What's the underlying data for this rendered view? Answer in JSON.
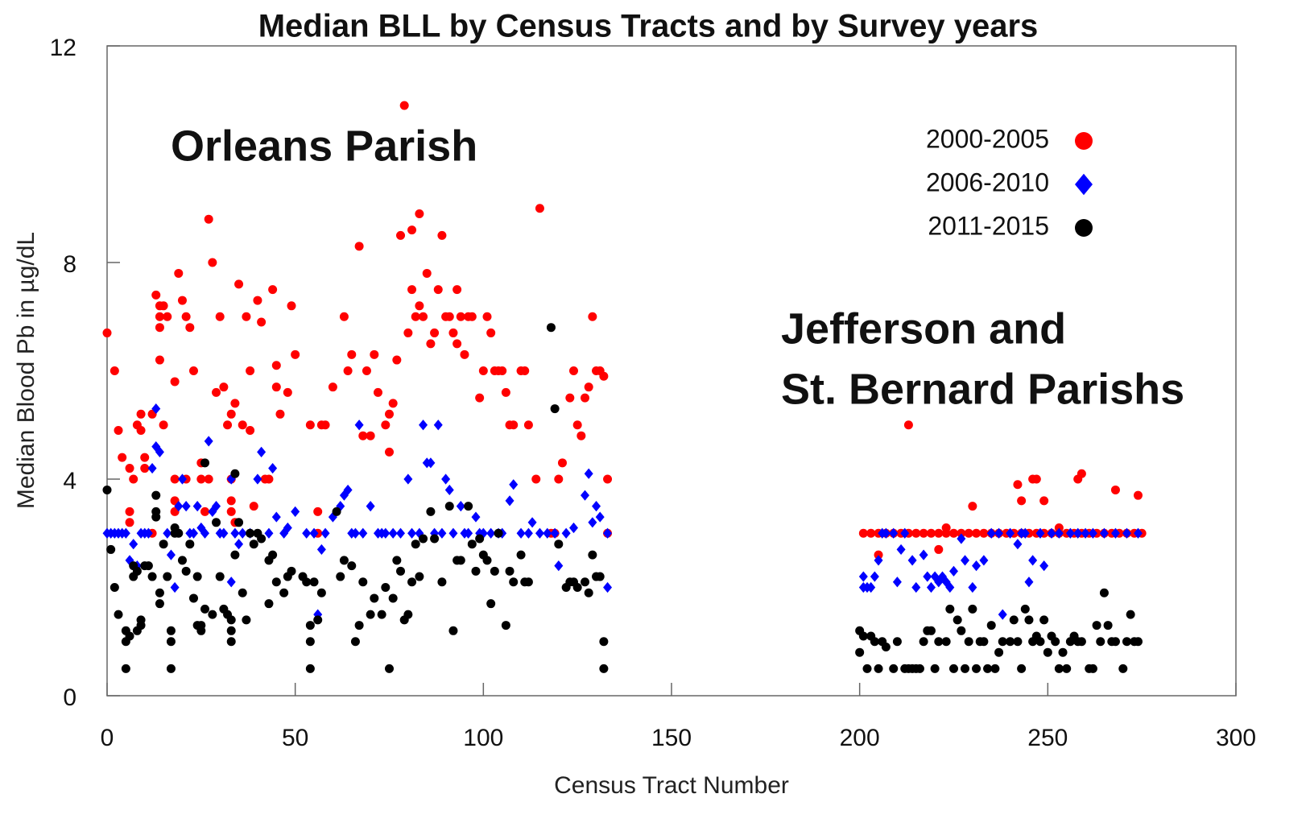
{
  "chart_data": {
    "type": "scatter",
    "title": "Median BLL by Census Tracts and by Survey years",
    "x_label": "Census Tract Number",
    "y_label": "Median Blood Pb in µg/dL",
    "annotations": [
      "Orleans Parish",
      "Jefferson and",
      "St. Bernard Parishs"
    ],
    "xlim": [
      0,
      300
    ],
    "xticks": [
      0,
      50,
      100,
      150,
      200,
      250,
      300
    ],
    "ylim": [
      0,
      12
    ],
    "yticks": [
      0,
      4,
      8,
      12
    ],
    "grid": false,
    "legend": "upper right",
    "series": [
      {
        "name": "2000-2005",
        "color": "#ff0000",
        "marker": "circle",
        "x": [
          0,
          2,
          3,
          4,
          6,
          6,
          6,
          7,
          8,
          9,
          9,
          10,
          10,
          12,
          12,
          13,
          14,
          14,
          14,
          14,
          15,
          15,
          16,
          18,
          18,
          18,
          18,
          19,
          20,
          21,
          21,
          22,
          23,
          25,
          25,
          26,
          27,
          27,
          28,
          29,
          30,
          31,
          32,
          33,
          33,
          33,
          33,
          34,
          34,
          35,
          36,
          37,
          38,
          38,
          39,
          40,
          41,
          42,
          43,
          44,
          45,
          45,
          46,
          48,
          49,
          50,
          54,
          56,
          56,
          57,
          58,
          60,
          63,
          64,
          65,
          67,
          68,
          69,
          70,
          71,
          72,
          74,
          75,
          75,
          76,
          77,
          78,
          79,
          80,
          81,
          81,
          82,
          83,
          83,
          84,
          85,
          86,
          87,
          88,
          89,
          90,
          91,
          92,
          93,
          93,
          94,
          95,
          96,
          97,
          99,
          100,
          101,
          102,
          103,
          104,
          105,
          106,
          107,
          108,
          110,
          111,
          112,
          114,
          115,
          118,
          119,
          120,
          121,
          123,
          124,
          125,
          126,
          127,
          128,
          129,
          130,
          131,
          132,
          133,
          133,
          213,
          205,
          221,
          223,
          230,
          242,
          243,
          246,
          247,
          249,
          253,
          258,
          259,
          268,
          274,
          201,
          203,
          205,
          207,
          209,
          211,
          213,
          215,
          217,
          219,
          221,
          223,
          225,
          227,
          229,
          231,
          233,
          235,
          237,
          239,
          241,
          243,
          245,
          247,
          249,
          251,
          253,
          255,
          257,
          259,
          261,
          263,
          265,
          267,
          269,
          271,
          273,
          275
        ],
        "values": [
          6.7,
          6,
          4.9,
          4.4,
          4.2,
          3.4,
          3.2,
          4,
          5,
          5.2,
          4.9,
          4.4,
          4.2,
          5.2,
          3,
          7.4,
          7.2,
          7,
          6.8,
          6.2,
          7.2,
          5,
          7,
          5.8,
          4,
          3.6,
          3.4,
          7.8,
          7.3,
          7,
          4,
          6.8,
          6,
          4.3,
          4,
          3.4,
          8.8,
          4,
          8,
          5.6,
          7,
          5.7,
          5,
          5.2,
          4,
          3.6,
          3.4,
          5.4,
          3.2,
          7.6,
          5,
          7,
          6,
          4.9,
          3.5,
          7.3,
          6.9,
          4,
          4,
          7.5,
          6.1,
          5.7,
          5.2,
          5.6,
          7.2,
          6.3,
          5,
          3.4,
          3,
          5,
          5,
          5.7,
          7,
          6,
          6.3,
          8.3,
          4.8,
          6,
          4.8,
          6.3,
          5.6,
          5,
          4.5,
          5.2,
          5.4,
          6.2,
          8.5,
          10.9,
          6.7,
          8.6,
          7.5,
          7,
          8.9,
          7.2,
          7,
          7.8,
          6.5,
          6.7,
          7.5,
          8.5,
          7,
          7,
          6.7,
          7.5,
          6.5,
          7,
          6.3,
          7,
          7,
          5.5,
          6,
          7,
          6.7,
          6,
          6,
          6,
          5.6,
          5,
          5,
          6,
          6,
          5,
          4,
          9,
          3,
          3,
          4,
          4.3,
          5.5,
          6,
          5,
          4.8,
          5.5,
          5.7,
          7,
          6,
          6,
          5.9,
          4,
          3,
          5,
          2.6,
          2.7,
          3.1,
          3.5,
          3.9,
          3.6,
          4,
          4,
          3.6,
          3.1,
          4,
          4.1,
          3.8,
          3.7,
          3,
          3,
          3,
          3,
          3,
          3,
          3,
          3,
          3,
          3,
          3,
          3,
          3,
          3,
          3,
          3,
          3,
          3,
          3,
          3,
          3,
          3,
          3,
          3,
          3,
          3,
          3,
          3,
          3,
          3,
          3,
          3,
          3,
          3,
          3,
          3,
          3,
          3
        ]
      },
      {
        "name": "2006-2010",
        "color": "#0000ff",
        "marker": "diamond",
        "x": [
          0,
          1,
          2,
          3,
          4,
          5,
          6,
          7,
          8,
          9,
          10,
          11,
          12,
          13,
          13,
          14,
          16,
          17,
          18,
          19,
          20,
          21,
          22,
          23,
          24,
          25,
          26,
          27,
          28,
          29,
          30,
          31,
          33,
          33,
          34,
          35,
          36,
          38,
          40,
          41,
          43,
          44,
          45,
          47,
          48,
          50,
          53,
          55,
          56,
          57,
          58,
          60,
          62,
          63,
          64,
          65,
          66,
          67,
          68,
          70,
          72,
          73,
          74,
          76,
          78,
          80,
          81,
          83,
          84,
          85,
          86,
          87,
          88,
          89,
          90,
          91,
          92,
          94,
          95,
          96,
          98,
          99,
          100,
          102,
          104,
          105,
          107,
          108,
          110,
          112,
          113,
          115,
          117,
          119,
          120,
          122,
          124,
          127,
          128,
          129,
          130,
          131,
          133,
          133,
          201,
          201,
          202,
          203,
          204,
          205,
          206,
          207,
          209,
          210,
          211,
          212,
          214,
          215,
          217,
          218,
          219,
          220,
          221,
          222,
          223,
          224,
          225,
          227,
          228,
          230,
          231,
          233,
          235,
          237,
          238,
          240,
          242,
          243,
          244,
          245,
          246,
          248,
          249,
          251,
          253,
          256,
          258,
          260,
          262,
          265,
          268,
          271,
          274
        ],
        "values": [
          3,
          3,
          3,
          3,
          3,
          3,
          2.5,
          2.8,
          2.4,
          3,
          3,
          3,
          4.2,
          5.3,
          4.6,
          4.5,
          3,
          2.6,
          2,
          3.5,
          4,
          3.5,
          3,
          3,
          3.5,
          3.1,
          3,
          4.7,
          3.4,
          3.5,
          3,
          3,
          4,
          2.1,
          3,
          2.8,
          3,
          3,
          4,
          4.5,
          3,
          4.2,
          3.3,
          3,
          3.1,
          3.4,
          3,
          3,
          1.5,
          2.7,
          3,
          3.3,
          3.5,
          3.7,
          3.8,
          3,
          3,
          5,
          3,
          3.5,
          3,
          3,
          3,
          3,
          3,
          4,
          3,
          3,
          5,
          4.3,
          4.3,
          3,
          5,
          3,
          4,
          3.8,
          3,
          3.5,
          3,
          3,
          3.3,
          3,
          3,
          3,
          3,
          3,
          3.6,
          3.9,
          3,
          3,
          3.2,
          3,
          3,
          3,
          2.4,
          3,
          3.1,
          3.7,
          4.1,
          3.2,
          3.5,
          3.3,
          3,
          2,
          2.2,
          2,
          2,
          2,
          2.2,
          2.5,
          3,
          3,
          3,
          2.1,
          2.7,
          3,
          2.5,
          2,
          2.6,
          2.2,
          2,
          2.2,
          2.1,
          2.2,
          2.1,
          2,
          2.3,
          2.9,
          2.5,
          2,
          2.4,
          2.5,
          3,
          3,
          1.5,
          3,
          2.8,
          3,
          3,
          2.1,
          2.5,
          3,
          2.4,
          3,
          3,
          3,
          3,
          3,
          3,
          3,
          3,
          3,
          3
        ]
      },
      {
        "name": "2011-2015",
        "color": "#000000",
        "marker": "circle",
        "x": [
          0,
          1,
          2,
          3,
          5,
          5,
          5,
          6,
          7,
          7,
          8,
          8,
          9,
          9,
          10,
          11,
          12,
          13,
          13,
          13,
          14,
          14,
          15,
          16,
          17,
          17,
          17,
          18,
          18,
          19,
          20,
          21,
          22,
          23,
          24,
          24,
          25,
          25,
          26,
          26,
          28,
          29,
          30,
          31,
          32,
          33,
          33,
          33,
          34,
          34,
          35,
          36,
          37,
          38,
          39,
          40,
          41,
          43,
          43,
          44,
          45,
          47,
          48,
          49,
          52,
          53,
          54,
          54,
          54,
          55,
          56,
          57,
          61,
          62,
          63,
          65,
          66,
          67,
          68,
          70,
          71,
          73,
          74,
          75,
          76,
          77,
          78,
          79,
          80,
          81,
          82,
          83,
          84,
          86,
          87,
          89,
          91,
          92,
          93,
          94,
          96,
          97,
          98,
          99,
          100,
          101,
          102,
          103,
          104,
          106,
          107,
          108,
          110,
          111,
          112,
          118,
          119,
          120,
          122,
          123,
          124,
          125,
          127,
          128,
          129,
          130,
          131,
          132,
          132,
          200,
          200,
          201,
          202,
          203,
          204,
          205,
          206,
          207,
          209,
          210,
          212,
          213,
          214,
          215,
          216,
          217,
          218,
          219,
          220,
          221,
          223,
          224,
          225,
          226,
          227,
          228,
          229,
          230,
          231,
          232,
          233,
          234,
          235,
          236,
          237,
          238,
          240,
          241,
          242,
          243,
          244,
          245,
          246,
          247,
          248,
          249,
          250,
          251,
          252,
          253,
          254,
          255,
          256,
          257,
          258,
          259,
          261,
          262,
          263,
          264,
          265,
          266,
          267,
          268,
          270,
          271,
          272,
          273,
          274
        ],
        "values": [
          3.8,
          2.7,
          2,
          1.5,
          1.2,
          0.5,
          1,
          1.1,
          2.4,
          2.2,
          2.3,
          1.2,
          1.3,
          1.4,
          2.4,
          2.4,
          2.2,
          3.7,
          3.4,
          3.3,
          1.9,
          1.7,
          2.8,
          2.2,
          1,
          1.2,
          0.5,
          3,
          3.1,
          3,
          2.5,
          2.3,
          2.8,
          1.8,
          2.2,
          1.3,
          1.3,
          1.2,
          4.3,
          1.6,
          1.5,
          3.2,
          2.2,
          1.6,
          1.5,
          1.4,
          1.2,
          1,
          4.1,
          2.6,
          3.2,
          1.9,
          1.4,
          3,
          2.8,
          3,
          2.9,
          1.7,
          2.5,
          2.6,
          2.1,
          1.9,
          2.2,
          2.3,
          2.2,
          2.1,
          1,
          0.5,
          1.3,
          2.1,
          1.4,
          1.9,
          3.4,
          2.2,
          2.5,
          2.4,
          1,
          1.3,
          2.1,
          1.5,
          1.8,
          1.5,
          2,
          0.5,
          1.8,
          2.5,
          2.3,
          1.4,
          1.5,
          2.1,
          2.8,
          2.2,
          2.9,
          3.4,
          2.9,
          2.1,
          3.5,
          1.2,
          2.5,
          2.5,
          3.5,
          2.8,
          2.3,
          2.9,
          2.6,
          2.5,
          1.7,
          2.3,
          3,
          1.3,
          2.3,
          2.1,
          2.6,
          2.1,
          2.1,
          6.8,
          5.3,
          2.8,
          2,
          2.1,
          2.1,
          2,
          2.1,
          1.9,
          2.6,
          2.2,
          2.2,
          1,
          0.5,
          0.8,
          1.2,
          1.1,
          0.5,
          1.1,
          1,
          0.5,
          1,
          0.9,
          0.5,
          1,
          0.5,
          0.5,
          0.5,
          0.5,
          0.5,
          1,
          1.2,
          1.2,
          0.5,
          1,
          1,
          1.6,
          0.5,
          1.4,
          1.2,
          0.5,
          1,
          1.6,
          0.5,
          1,
          1,
          0.5,
          1.3,
          0.5,
          0.8,
          1,
          1,
          1.4,
          1,
          0.5,
          1.6,
          1.4,
          1,
          1.1,
          1,
          1.4,
          0.8,
          1.1,
          1,
          0.5,
          0.8,
          0.5,
          1,
          1.1,
          1,
          1,
          0.5,
          0.5,
          1.3,
          1,
          1.9,
          1.3,
          1,
          1,
          0.5,
          1,
          1.5,
          1,
          1
        ]
      }
    ]
  }
}
